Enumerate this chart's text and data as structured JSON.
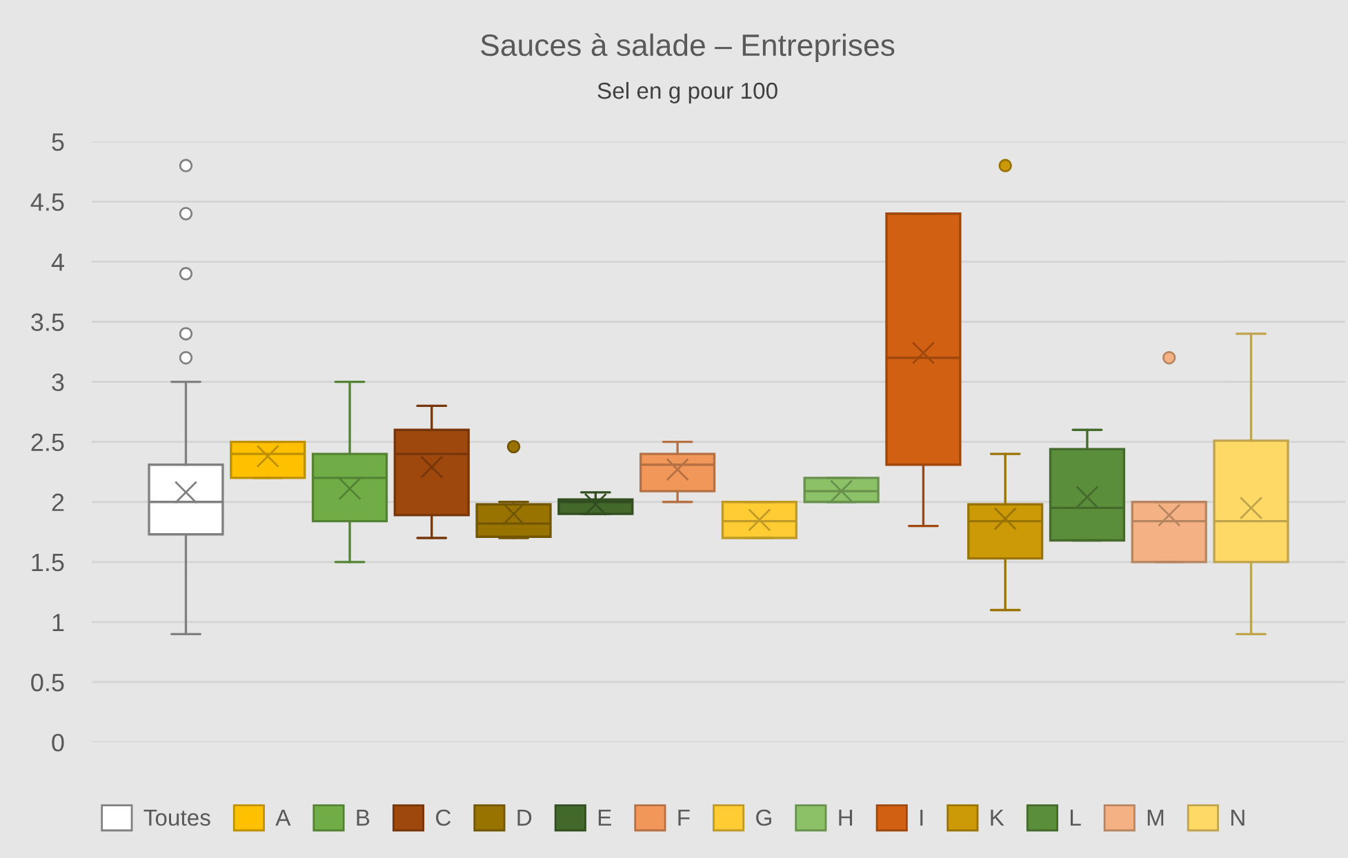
{
  "chart_data": {
    "type": "box",
    "title": "Sauces à salade – Entreprises",
    "subtitle": "Sel en g pour 100",
    "categories": [
      null
    ],
    "ylim": [
      0,
      5
    ],
    "yticks": [
      0,
      0.5,
      1,
      1.5,
      2,
      2.5,
      3,
      3.5,
      4,
      4.5,
      5
    ],
    "grid": "y",
    "legend": "bottom",
    "tick_labels": "y",
    "series": [
      {
        "name": "Toutes",
        "color": "#ffffff",
        "boxes": [
          {
            "low": 0.9,
            "q1": 1.73,
            "median": 2.0,
            "q3": 2.31,
            "high": 3.0,
            "mean": 2.08,
            "outliers": [
              3.2,
              3.4,
              3.9,
              4.4,
              4.8
            ]
          }
        ]
      },
      {
        "name": "A",
        "color": "#ffc000",
        "boxes": [
          {
            "low": 2.2,
            "q1": 2.2,
            "median": 2.4,
            "q3": 2.5,
            "high": 2.5,
            "mean": 2.38
          }
        ]
      },
      {
        "name": "B",
        "color": "#70ad47",
        "boxes": [
          {
            "low": 1.5,
            "q1": 1.84,
            "median": 2.2,
            "q3": 2.4,
            "high": 3.0,
            "mean": 2.11
          }
        ]
      },
      {
        "name": "C",
        "color": "#9e480e",
        "boxes": [
          {
            "low": 1.7,
            "q1": 1.89,
            "median": 2.4,
            "q3": 2.6,
            "high": 2.8,
            "mean": 2.29
          }
        ]
      },
      {
        "name": "D",
        "color": "#997300",
        "boxes": [
          {
            "low": 1.7,
            "q1": 1.71,
            "median": 1.82,
            "q3": 1.98,
            "high": 2.0,
            "mean": 1.9,
            "outliers": [
              2.46
            ]
          }
        ]
      },
      {
        "name": "E",
        "color": "#43682b",
        "boxes": [
          {
            "low": 1.9,
            "q1": 1.9,
            "median": 2.0,
            "q3": 2.02,
            "high": 2.08,
            "mean": 1.98
          }
        ]
      },
      {
        "name": "F",
        "color": "#f1975a",
        "boxes": [
          {
            "low": 2.0,
            "q1": 2.09,
            "median": 2.31,
            "q3": 2.4,
            "high": 2.5,
            "mean": 2.27
          }
        ]
      },
      {
        "name": "G",
        "color": "#ffcd33",
        "boxes": [
          {
            "low": 1.7,
            "q1": 1.7,
            "median": 1.84,
            "q3": 2.0,
            "high": 2.0,
            "mean": 1.85
          }
        ]
      },
      {
        "name": "H",
        "color": "#8cc168",
        "boxes": [
          {
            "low": 2.0,
            "q1": 2.0,
            "median": 2.09,
            "q3": 2.2,
            "high": 2.2,
            "mean": 2.09
          }
        ]
      },
      {
        "name": "I",
        "color": "#d26012",
        "boxes": [
          {
            "low": 1.8,
            "q1": 2.31,
            "median": 3.2,
            "q3": 4.4,
            "high": 4.4,
            "mean": 3.24
          }
        ]
      },
      {
        "name": "K",
        "color": "#cc9a06",
        "boxes": [
          {
            "low": 1.1,
            "q1": 1.53,
            "median": 1.84,
            "q3": 1.98,
            "high": 2.4,
            "mean": 1.86,
            "outliers": [
              4.8
            ]
          }
        ]
      },
      {
        "name": "L",
        "color": "#5b8e3a",
        "boxes": [
          {
            "low": 1.68,
            "q1": 1.68,
            "median": 1.95,
            "q3": 2.44,
            "high": 2.6,
            "mean": 2.04
          }
        ]
      },
      {
        "name": "M",
        "color": "#f4b183",
        "boxes": [
          {
            "low": 1.5,
            "q1": 1.5,
            "median": 1.84,
            "q3": 2.0,
            "high": 2.0,
            "mean": 1.89,
            "outliers": [
              3.2
            ]
          }
        ]
      },
      {
        "name": "N",
        "color": "#ffd966",
        "boxes": [
          {
            "low": 0.9,
            "q1": 1.5,
            "median": 1.84,
            "q3": 2.51,
            "high": 3.4,
            "mean": 1.95
          }
        ]
      }
    ]
  }
}
